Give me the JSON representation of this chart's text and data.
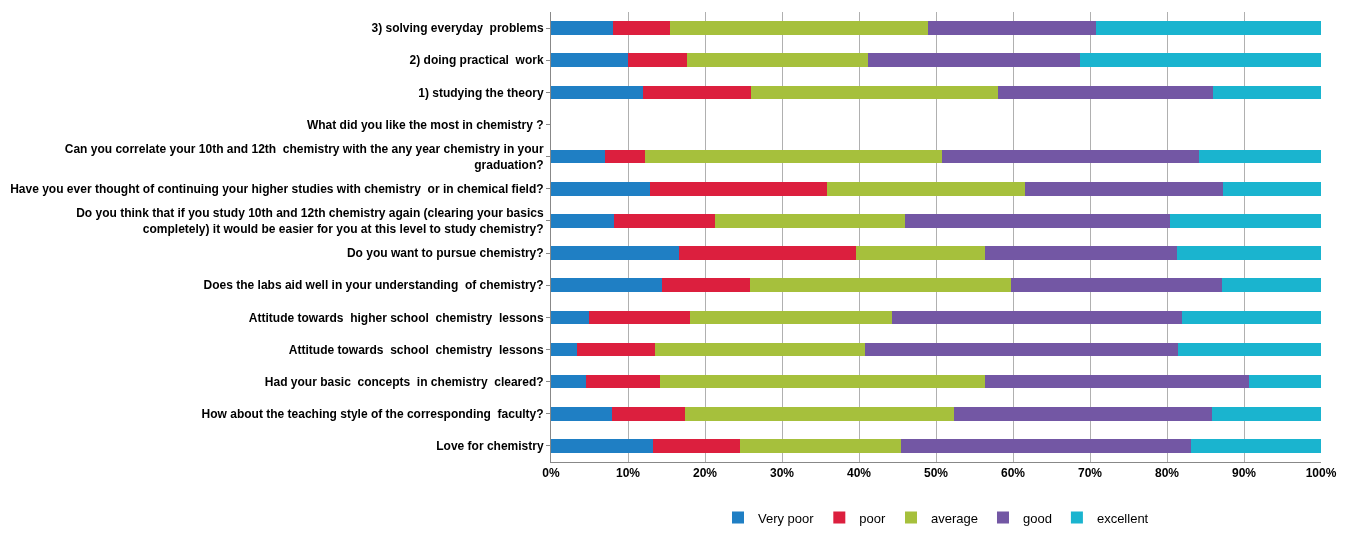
{
  "chart_data": {
    "type": "bar",
    "orientation": "horizontal",
    "stacked": true,
    "categories": [
      "3) solving everyday  problems",
      "2) doing practical  work",
      "1) studying the theory",
      "What did you like the most in chemistry ?",
      "Can you correlate your 10th and 12th  chemistry with the any year chemistry in your\ngraduation?",
      "Have you ever thought of continuing your higher studies with chemistry  or in chemical field?",
      "Do you think that if you study 10th and 12th chemistry again (clearing your basics\ncompletely) it would be easier for you at this level to study chemistry?",
      "Do you want to pursue chemistry?",
      "Does the labs aid well in your understanding  of chemistry?",
      "Attitude towards  higher school  chemistry  lessons",
      "Attitude towards  school  chemistry  lessons",
      "Had your basic  concepts  in chemistry  cleared?",
      "How about the teaching style of the corresponding  faculty?",
      "Love for chemistry"
    ],
    "series": [
      {
        "name": "Very poor",
        "color": "#1f7fc4",
        "values": [
          8,
          10,
          12,
          null,
          7,
          12.8,
          8.2,
          16.6,
          14.4,
          4.9,
          3.4,
          4.6,
          7.9,
          13.2
        ]
      },
      {
        "name": "poor",
        "color": "#dc1f3e",
        "values": [
          7.5,
          7.7,
          14,
          null,
          5.2,
          23,
          13.1,
          23,
          11.4,
          13.1,
          10.1,
          9.5,
          9.5,
          11.3
        ]
      },
      {
        "name": "average",
        "color": "#a6c03c",
        "values": [
          33.5,
          23.5,
          32,
          null,
          38.6,
          25.7,
          24.7,
          16.7,
          34,
          26.3,
          27.3,
          42.2,
          35,
          20.9
        ]
      },
      {
        "name": "good",
        "color": "#7357a4",
        "values": [
          21.8,
          27.5,
          28,
          null,
          33.4,
          25.8,
          34.4,
          25,
          27.3,
          37.7,
          40.6,
          34.4,
          33.4,
          37.7
        ]
      },
      {
        "name": "excellent",
        "color": "#1ab4cf",
        "values": [
          29.2,
          31.3,
          14,
          null,
          15.8,
          12.7,
          19.6,
          18.7,
          12.9,
          18,
          18.6,
          9.3,
          14.2,
          16.9
        ]
      }
    ],
    "xlim": [
      0,
      100
    ],
    "xticks": [
      {
        "value": 0,
        "label": "0%"
      },
      {
        "value": 10,
        "label": "10%"
      },
      {
        "value": 20,
        "label": "20%"
      },
      {
        "value": 30,
        "label": "30%"
      },
      {
        "value": 40,
        "label": "40%"
      },
      {
        "value": 50,
        "label": "50%"
      },
      {
        "value": 60,
        "label": "60%"
      },
      {
        "value": 70,
        "label": "70%"
      },
      {
        "value": 80,
        "label": "80%"
      },
      {
        "value": 90,
        "label": "90%"
      },
      {
        "value": 100,
        "label": "100%"
      }
    ],
    "grid": "x",
    "legend": "bottom"
  }
}
